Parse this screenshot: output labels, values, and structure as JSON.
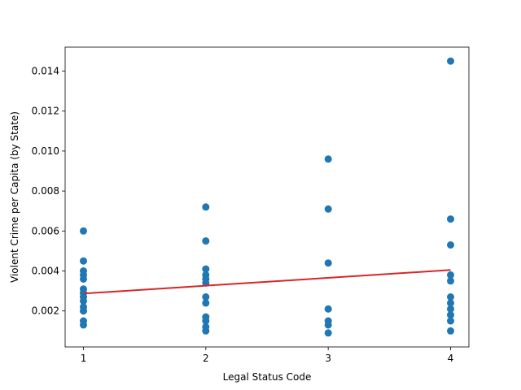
{
  "chart_data": {
    "type": "scatter",
    "xlabel": "Legal Status Code",
    "ylabel": "Violent Crime per Capita (by State)",
    "xlim": [
      0.85,
      4.15
    ],
    "ylim": [
      0.0002,
      0.0152
    ],
    "x_ticks": [
      1,
      2,
      3,
      4
    ],
    "x_tick_labels": [
      "1",
      "2",
      "3",
      "4"
    ],
    "y_ticks": [
      0.002,
      0.004,
      0.006,
      0.008,
      0.01,
      0.012,
      0.014
    ],
    "y_tick_labels": [
      "0.002",
      "0.004",
      "0.006",
      "0.008",
      "0.010",
      "0.012",
      "0.014"
    ],
    "grid": false,
    "colors": {
      "points": "#1f77b4",
      "trend": "#d62728"
    },
    "series": [
      {
        "kind": "points",
        "points": [
          [
            1,
            0.006
          ],
          [
            1,
            0.0045
          ],
          [
            1,
            0.004
          ],
          [
            1,
            0.0038
          ],
          [
            1,
            0.0036
          ],
          [
            1,
            0.0031
          ],
          [
            1,
            0.0029
          ],
          [
            1,
            0.0027
          ],
          [
            1,
            0.0025
          ],
          [
            1,
            0.0022
          ],
          [
            1,
            0.002
          ],
          [
            1,
            0.0015
          ],
          [
            1,
            0.0013
          ],
          [
            2,
            0.0072
          ],
          [
            2,
            0.0055
          ],
          [
            2,
            0.0041
          ],
          [
            2,
            0.0038
          ],
          [
            2,
            0.0036
          ],
          [
            2,
            0.0034
          ],
          [
            2,
            0.0027
          ],
          [
            2,
            0.0024
          ],
          [
            2,
            0.0017
          ],
          [
            2,
            0.0015
          ],
          [
            2,
            0.0012
          ],
          [
            2,
            0.001
          ],
          [
            3,
            0.0096
          ],
          [
            3,
            0.0071
          ],
          [
            3,
            0.0044
          ],
          [
            3,
            0.0021
          ],
          [
            3,
            0.0015
          ],
          [
            3,
            0.0013
          ],
          [
            3,
            0.0009
          ],
          [
            4,
            0.0145
          ],
          [
            4,
            0.0066
          ],
          [
            4,
            0.0053
          ],
          [
            4,
            0.0038
          ],
          [
            4,
            0.0035
          ],
          [
            4,
            0.0027
          ],
          [
            4,
            0.0024
          ],
          [
            4,
            0.0021
          ],
          [
            4,
            0.0018
          ],
          [
            4,
            0.0015
          ],
          [
            4,
            0.001
          ]
        ]
      },
      {
        "kind": "trend",
        "points": [
          [
            1,
            0.00287
          ],
          [
            4,
            0.00405
          ]
        ]
      }
    ]
  }
}
